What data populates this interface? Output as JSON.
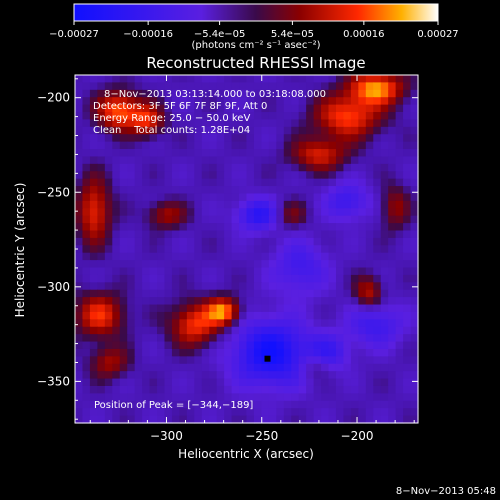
{
  "chart_data": {
    "type": "heatmap",
    "title": "Reconstructed RHESSI Image",
    "xlabel": "Heliocentric X (arcsec)",
    "ylabel": "Heliocentric Y (arcsec)",
    "xlim": [
      -348,
      -168
    ],
    "ylim": [
      -372,
      -188
    ],
    "x_ticks": [
      -300,
      -250,
      -200
    ],
    "x_tick_labels": [
      "−300",
      "−250",
      "−200"
    ],
    "y_ticks": [
      -350,
      -300,
      -250,
      -200
    ],
    "y_tick_labels": [
      "−350",
      "−300",
      "−250",
      "−200"
    ],
    "colorbar": {
      "range": [
        -0.00027,
        0.00027
      ],
      "ticks": [
        -0.00027,
        -0.00016,
        -5.4e-05,
        5.4e-05,
        0.00016,
        0.00027
      ],
      "tick_labels": [
        "−0.00027",
        "−0.00016",
        "−5.4e−05",
        "5.4e−05",
        "0.00016",
        "0.00027"
      ],
      "units": "(photons cm⁻² s⁻¹ asec⁻²)"
    },
    "grid_cols": 46,
    "grid_rows": 47,
    "annotations": [
      "8−Nov−2013 03:13:14.000 to 03:18:08.000",
      "Detectors: 3F 5F 6F 7F 8F 9F, Att 0",
      "Energy Range: 25.0 − 50.0 keV",
      "Clean    Total counts: 1.28E+04"
    ],
    "peak_label": "Position of Peak = [−344,−189]",
    "peak": [
      -344,
      -189
    ],
    "timestamp": "8−Nov−2013 05:48",
    "features": {
      "red_blobs": [
        {
          "x": -205,
          "y": -210,
          "sx": 12,
          "sy": 8,
          "v": 0.0002
        },
        {
          "x": -190,
          "y": -195,
          "sx": 10,
          "sy": 6,
          "v": 0.00024
        },
        {
          "x": -220,
          "y": -230,
          "sx": 10,
          "sy": 6,
          "v": 0.00016
        },
        {
          "x": -325,
          "y": -207,
          "sx": 8,
          "sy": 7,
          "v": 0.00022
        },
        {
          "x": -310,
          "y": -212,
          "sx": 6,
          "sy": 6,
          "v": 0.00016
        },
        {
          "x": -338,
          "y": -260,
          "sx": 6,
          "sy": 12,
          "v": 0.00018
        },
        {
          "x": -335,
          "y": -315,
          "sx": 9,
          "sy": 8,
          "v": 0.00018
        },
        {
          "x": -285,
          "y": -320,
          "sx": 9,
          "sy": 8,
          "v": 0.00019
        },
        {
          "x": -270,
          "y": -313,
          "sx": 6,
          "sy": 5,
          "v": 0.00023
        },
        {
          "x": -300,
          "y": -262,
          "sx": 7,
          "sy": 5,
          "v": 0.00012
        },
        {
          "x": -330,
          "y": -340,
          "sx": 7,
          "sy": 6,
          "v": 0.00012
        },
        {
          "x": -194,
          "y": -303,
          "sx": 5,
          "sy": 6,
          "v": 0.00014
        },
        {
          "x": -180,
          "y": -258,
          "sx": 5,
          "sy": 8,
          "v": 0.00011
        },
        {
          "x": -235,
          "y": -262,
          "sx": 6,
          "sy": 5,
          "v": 9e-05
        },
        {
          "x": -222,
          "y": -342,
          "sx": 6,
          "sy": 5,
          "v": 8e-05
        }
      ],
      "blue_blobs": [
        {
          "x": -245,
          "y": -335,
          "sx": 14,
          "sy": 12,
          "v": -0.00022
        },
        {
          "x": -252,
          "y": -262,
          "sx": 8,
          "sy": 6,
          "v": -0.00016
        },
        {
          "x": -230,
          "y": -290,
          "sx": 10,
          "sy": 10,
          "v": -0.00011
        },
        {
          "x": -205,
          "y": -255,
          "sx": 8,
          "sy": 7,
          "v": -0.00012
        },
        {
          "x": -190,
          "y": -320,
          "sx": 10,
          "sy": 8,
          "v": -0.00012
        },
        {
          "x": -215,
          "y": -335,
          "sx": 8,
          "sy": 7,
          "v": -0.00011
        }
      ]
    }
  }
}
